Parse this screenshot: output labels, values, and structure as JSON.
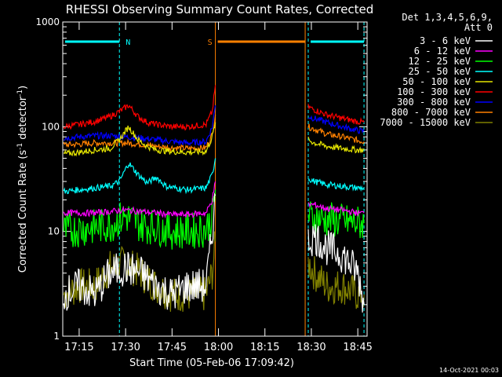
{
  "chart_data": {
    "type": "line",
    "title": "RHESSI Observing Summary Count Rates, Corrected",
    "xlabel": "Start Time (05-Feb-06 17:09:42)",
    "ylabel": "Corrected Count Rate (s⁻¹ detector⁻¹)",
    "ylabel_main": "Corrected Count Rate (s",
    "ylabel_sup1": "-1",
    "ylabel_mid": " detector",
    "ylabel_sup2": "-1",
    "ylabel_end": ")",
    "yscale": "log",
    "ylim": [
      1,
      1000
    ],
    "xlim": [
      "17:09:42",
      "18:48:00"
    ],
    "x_tick_labels": [
      "17:15",
      "17:30",
      "17:45",
      "18:00",
      "18:15",
      "18:30",
      "18:45"
    ],
    "y_tick_labels": [
      "1",
      "10",
      "100",
      "1000"
    ],
    "detectors": "Det 1,3,4,5,6,9,",
    "attenuator": "Att 0",
    "legend_position": "top-right, outside plot",
    "footer_date": "14-Oct-2021 00:03",
    "annotations": [
      {
        "label": "N",
        "color": "#00ffff",
        "start": "17:09:42",
        "end": "17:28:00"
      },
      {
        "label": "S",
        "color": "#ff8000",
        "start": "17:59:00",
        "end": "18:28:00"
      },
      {
        "label": "",
        "color": "#00ffff",
        "start": "18:29:00",
        "end": "18:47:00"
      }
    ],
    "data_gap": [
      "18:00",
      "18:28"
    ],
    "series": [
      {
        "name": "3 - 6 keV",
        "color": "#ffffff",
        "x": [
          "17:10",
          "17:15",
          "17:20",
          "17:25",
          "17:30",
          "17:35",
          "17:40",
          "17:45",
          "17:50",
          "17:56",
          "17:58",
          "17:59",
          "18:29",
          "18:31",
          "18:35",
          "18:40",
          "18:45",
          "18:47"
        ],
        "y": [
          2.5,
          3,
          2.5,
          4,
          4.5,
          4,
          3,
          2.5,
          3,
          3,
          10,
          22,
          8,
          9,
          7,
          6,
          4,
          2
        ]
      },
      {
        "name": "6 - 12 keV",
        "color": "#ff00ff",
        "x": [
          "17:10",
          "17:15",
          "17:20",
          "17:25",
          "17:30",
          "17:35",
          "17:40",
          "17:45",
          "17:50",
          "17:56",
          "17:58",
          "17:59",
          "18:29",
          "18:31",
          "18:35",
          "18:40",
          "18:45",
          "18:47"
        ],
        "y": [
          15,
          15,
          15,
          15.5,
          16,
          15.5,
          15,
          14.5,
          14.5,
          15,
          20,
          30,
          18,
          18,
          16.5,
          16,
          15,
          15
        ]
      },
      {
        "name": "12 - 25 keV",
        "color": "#00ff00",
        "x": [
          "17:10",
          "17:15",
          "17:20",
          "17:25",
          "17:30",
          "17:35",
          "17:40",
          "17:45",
          "17:50",
          "17:56",
          "17:58",
          "17:59",
          "18:29",
          "18:31",
          "18:35",
          "18:40",
          "18:45",
          "18:47"
        ],
        "y": [
          10,
          10.5,
          11,
          11.5,
          14,
          11.5,
          11,
          10,
          10,
          10.5,
          14,
          25,
          14,
          13.5,
          13,
          12.5,
          12,
          12
        ]
      },
      {
        "name": "25 - 50 keV",
        "color": "#00ffff",
        "x": [
          "17:10",
          "17:15",
          "17:20",
          "17:25",
          "17:28",
          "17:31",
          "17:34",
          "17:37",
          "17:40",
          "17:43",
          "17:46",
          "17:50",
          "17:56",
          "17:58",
          "17:59",
          "18:29",
          "18:31",
          "18:35",
          "18:40",
          "18:45",
          "18:47"
        ],
        "y": [
          24,
          25,
          26,
          27,
          30,
          45,
          35,
          29,
          33,
          27,
          26,
          25,
          26,
          35,
          50,
          32,
          30,
          28,
          27,
          26,
          26
        ]
      },
      {
        "name": "50 - 100 keV",
        "color": "#e6e600",
        "x": [
          "17:10",
          "17:15",
          "17:20",
          "17:25",
          "17:28",
          "17:31",
          "17:34",
          "17:37",
          "17:40",
          "17:45",
          "17:50",
          "17:56",
          "17:58",
          "17:59",
          "18:29",
          "18:31",
          "18:35",
          "18:40",
          "18:45",
          "18:47"
        ],
        "y": [
          55,
          57,
          60,
          62,
          75,
          100,
          75,
          65,
          60,
          58,
          57,
          58,
          80,
          110,
          75,
          70,
          65,
          62,
          60,
          60
        ]
      },
      {
        "name": "100 - 300 keV",
        "color": "#ff0000",
        "x": [
          "17:10",
          "17:15",
          "17:20",
          "17:25",
          "17:28",
          "17:31",
          "17:34",
          "17:37",
          "17:40",
          "17:45",
          "17:50",
          "17:56",
          "17:58",
          "17:59",
          "18:29",
          "18:31",
          "18:35",
          "18:40",
          "18:45",
          "18:47"
        ],
        "y": [
          100,
          105,
          112,
          125,
          140,
          160,
          125,
          110,
          105,
          100,
          100,
          105,
          140,
          250,
          155,
          145,
          130,
          120,
          112,
          110
        ]
      },
      {
        "name": "300 - 800 keV",
        "color": "#0000ff",
        "x": [
          "17:10",
          "17:15",
          "17:20",
          "17:25",
          "17:30",
          "17:35",
          "17:40",
          "17:45",
          "17:50",
          "17:56",
          "17:58",
          "17:59",
          "18:29",
          "18:31",
          "18:35",
          "18:40",
          "18:45",
          "18:47"
        ],
        "y": [
          78,
          80,
          82,
          82,
          80,
          78,
          75,
          72,
          70,
          72,
          100,
          160,
          125,
          120,
          110,
          100,
          92,
          90
        ]
      },
      {
        "name": "800 - 7000 keV",
        "color": "#ff8000",
        "x": [
          "17:10",
          "17:15",
          "17:20",
          "17:25",
          "17:30",
          "17:35",
          "17:40",
          "17:45",
          "17:50",
          "17:56",
          "17:58",
          "17:59",
          "18:29",
          "18:31",
          "18:35",
          "18:40",
          "18:45",
          "18:47"
        ],
        "y": [
          67,
          68,
          70,
          70,
          70,
          68,
          65,
          63,
          62,
          63,
          85,
          130,
          100,
          95,
          85,
          80,
          74,
          72
        ]
      },
      {
        "name": "7000 - 15000 keV",
        "color": "#808000",
        "x": [
          "17:10",
          "17:15",
          "17:20",
          "17:25",
          "17:30",
          "17:35",
          "17:40",
          "17:45",
          "17:50",
          "17:56",
          "17:58",
          "17:59",
          "18:29",
          "18:31",
          "18:35",
          "18:40",
          "18:45",
          "18:47"
        ],
        "y": [
          2.5,
          3,
          3,
          4.5,
          5,
          4,
          3,
          2.5,
          2.5,
          2.5,
          4,
          8,
          5,
          4,
          3,
          3,
          2.5,
          2.5
        ]
      }
    ]
  }
}
